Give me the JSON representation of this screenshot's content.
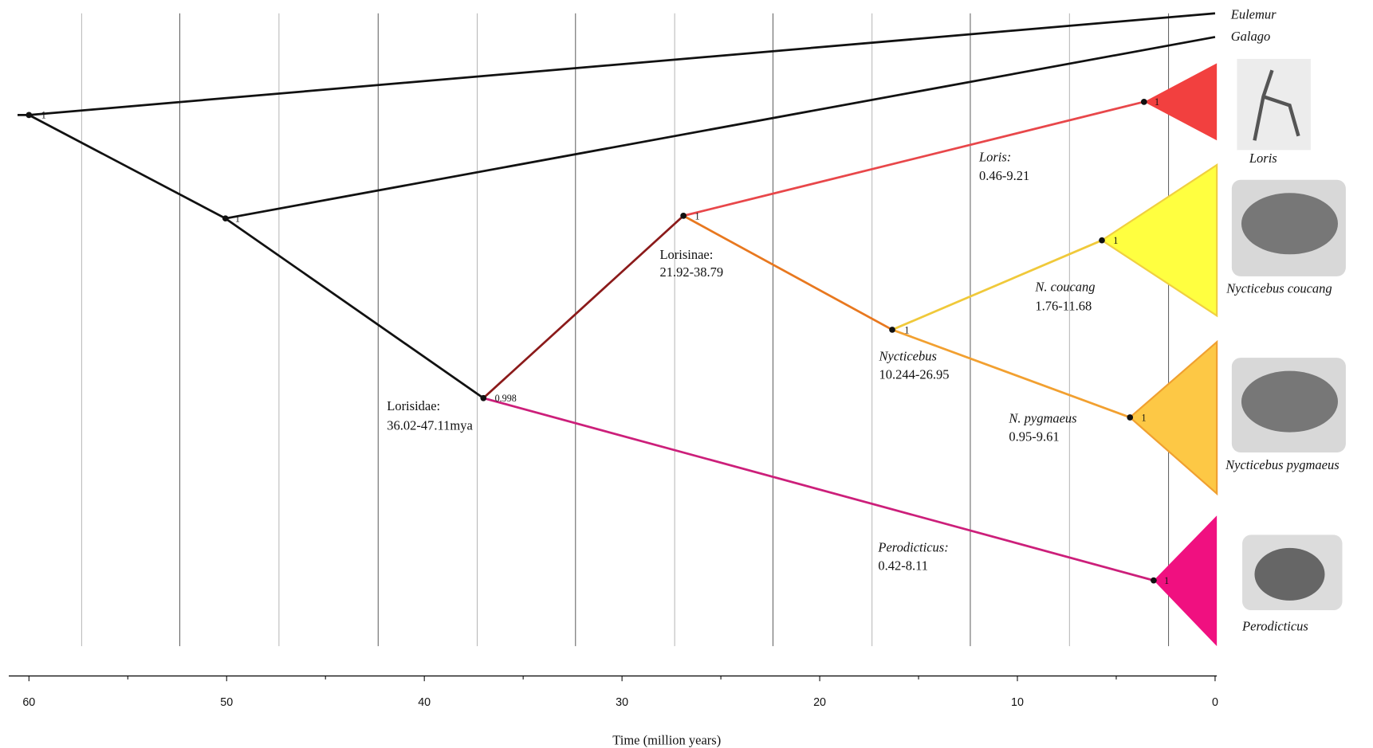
{
  "taxa": [
    "Eulemur",
    "Galago",
    "Loris",
    "Nycticebus coucang",
    "Nycticebus pygmaeus",
    "Perodicticus"
  ],
  "nodes": [
    {
      "support": "1"
    },
    {
      "support": "1"
    },
    {
      "support": "0.998"
    },
    {
      "support": "1"
    },
    {
      "support": "1"
    },
    {
      "support": "1"
    },
    {
      "support": "1"
    },
    {
      "support": "1"
    },
    {
      "support": "1"
    }
  ],
  "clades": [
    {
      "name": "Lorisidae:",
      "range": "36.02-47.11mya"
    },
    {
      "name": "Lorisinae:",
      "range": "21.92-38.79"
    },
    {
      "name": "Loris:",
      "range": "0.46-9.21"
    },
    {
      "name": "N. coucang",
      "range": "1.76-11.68"
    },
    {
      "name": "Nycticebus",
      "range": "10.244-26.95"
    },
    {
      "name": "N. pygmaeus",
      "range": "0.95-9.61"
    },
    {
      "name": "Perodicticus:",
      "range": "0.42-8.11"
    }
  ],
  "axis": {
    "title": "Time (million years)",
    "ticks": [
      60,
      50,
      40,
      30,
      20,
      10,
      0
    ]
  }
}
